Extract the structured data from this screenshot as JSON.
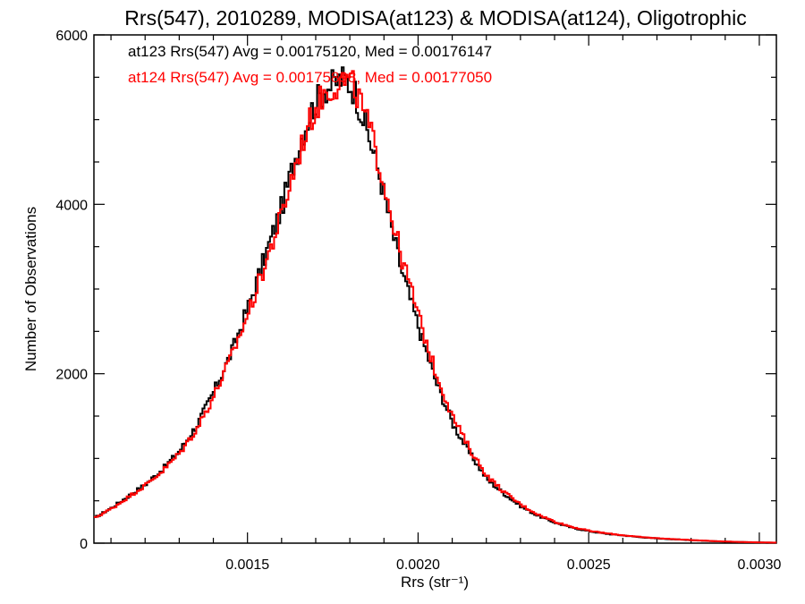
{
  "chart_data": {
    "type": "histogram-step",
    "title": "Rrs(547), 2010289, MODISA(at123) & MODISA(at124), Oligotrophic",
    "xlabel": "Rrs (str⁻¹)",
    "ylabel": "Number of Observations",
    "xlim": [
      0.00105,
      0.00305
    ],
    "ylim": [
      0,
      6000
    ],
    "x_ticks": [
      0.0015,
      0.002,
      0.0025,
      0.003
    ],
    "x_tick_labels": [
      "0.0015",
      "0.0020",
      "0.0025",
      "0.0030"
    ],
    "y_ticks": [
      0,
      2000,
      4000,
      6000
    ],
    "y_tick_labels": [
      "0",
      "2000",
      "4000",
      "6000"
    ],
    "grid": false,
    "legend_position": "top-left",
    "annotations": [
      "at123 Rrs(547) Avg = 0.00175120, Med = 0.00176147",
      "at124 Rrs(547) Avg = 0.00175898, Med = 0.00177050"
    ],
    "colors": {
      "at123": "#000000",
      "at124": "#ff0000"
    },
    "series": [
      {
        "color": "#000000",
        "x": [
          0.00105,
          0.0011,
          0.00115,
          0.0012,
          0.00125,
          0.0013,
          0.00135,
          0.0014,
          0.00145,
          0.0015,
          0.00155,
          0.0016,
          0.00163,
          0.00166,
          0.00169,
          0.00172,
          0.00175,
          0.00177,
          0.00179,
          0.00181,
          0.00183,
          0.00186,
          0.00189,
          0.00192,
          0.00195,
          0.00198,
          0.00201,
          0.00205,
          0.0021,
          0.00215,
          0.0022,
          0.00225,
          0.0023,
          0.00235,
          0.0024,
          0.00245,
          0.0025,
          0.00255,
          0.0026,
          0.00265,
          0.0027,
          0.00275,
          0.0028,
          0.00285,
          0.0029,
          0.00295,
          0.003,
          0.00305
        ],
        "y": [
          300,
          420,
          560,
          700,
          880,
          1100,
          1400,
          1800,
          2250,
          2800,
          3400,
          4000,
          4450,
          4850,
          5150,
          5350,
          5420,
          5480,
          5450,
          5350,
          5100,
          4700,
          4250,
          3700,
          3200,
          2800,
          2400,
          1900,
          1400,
          1050,
          750,
          580,
          430,
          320,
          240,
          180,
          140,
          110,
          90,
          70,
          55,
          45,
          35,
          25,
          18,
          12,
          8,
          5
        ]
      },
      {
        "color": "#ff0000",
        "x": [
          0.00105,
          0.0011,
          0.00115,
          0.0012,
          0.00125,
          0.0013,
          0.00135,
          0.0014,
          0.00145,
          0.0015,
          0.00155,
          0.0016,
          0.00163,
          0.00166,
          0.00169,
          0.00172,
          0.00175,
          0.00177,
          0.00179,
          0.00181,
          0.00183,
          0.00186,
          0.00189,
          0.00192,
          0.00195,
          0.00198,
          0.00201,
          0.00205,
          0.0021,
          0.00215,
          0.0022,
          0.00225,
          0.0023,
          0.00235,
          0.0024,
          0.00245,
          0.0025,
          0.00255,
          0.0026,
          0.00265,
          0.0027,
          0.00275,
          0.0028,
          0.00285,
          0.0029,
          0.00295,
          0.003,
          0.00305
        ],
        "y": [
          300,
          410,
          550,
          690,
          860,
          1070,
          1360,
          1750,
          2200,
          2720,
          3300,
          3900,
          4350,
          4750,
          5080,
          5300,
          5400,
          5460,
          5450,
          5380,
          5180,
          4820,
          4380,
          3850,
          3350,
          2950,
          2520,
          2000,
          1480,
          1100,
          790,
          600,
          450,
          335,
          250,
          190,
          145,
          115,
          92,
          72,
          58,
          47,
          36,
          27,
          19,
          13,
          9,
          6
        ]
      }
    ]
  }
}
